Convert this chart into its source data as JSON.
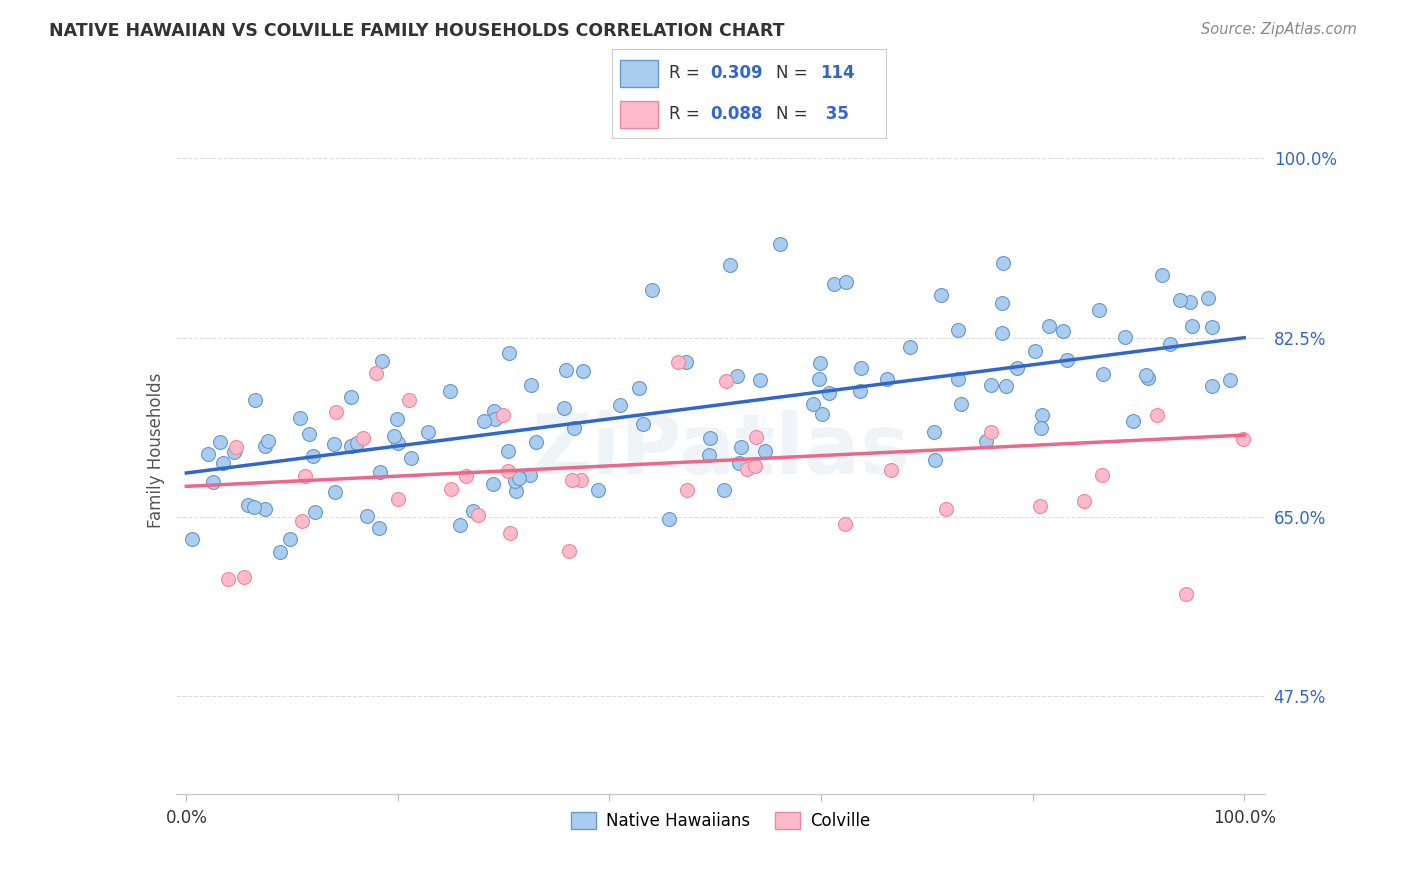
{
  "title": "NATIVE HAWAIIAN VS COLVILLE FAMILY HOUSEHOLDS CORRELATION CHART",
  "source": "Source: ZipAtlas.com",
  "ylabel": "Family Households",
  "legend_blue_R": "0.309",
  "legend_blue_N": "114",
  "legend_pink_R": "0.088",
  "legend_pink_N": "35",
  "legend_label_blue": "Native Hawaiians",
  "legend_label_pink": "Colville",
  "ytick_labels": [
    "47.5%",
    "65.0%",
    "82.5%",
    "100.0%"
  ],
  "ytick_values": [
    0.475,
    0.65,
    0.825,
    1.0
  ],
  "blue_scatter_color": "#AACCEE",
  "blue_edge_color": "#6699CC",
  "pink_scatter_color": "#FFBBCC",
  "pink_edge_color": "#EE8899",
  "blue_line_color": "#3366CC",
  "pink_line_color": "#EE6688",
  "background_color": "#FFFFFF",
  "title_color": "#333333",
  "axis_label_color": "#555555",
  "ytick_color": "#3366CC",
  "grid_color": "#DDDDDD",
  "blue_trendline_y0": 0.693,
  "blue_trendline_y1": 0.825,
  "pink_trendline_y0": 0.68,
  "pink_trendline_y1": 0.73,
  "ymin": 0.38,
  "ymax": 1.05,
  "xmin": -0.01,
  "xmax": 1.02
}
